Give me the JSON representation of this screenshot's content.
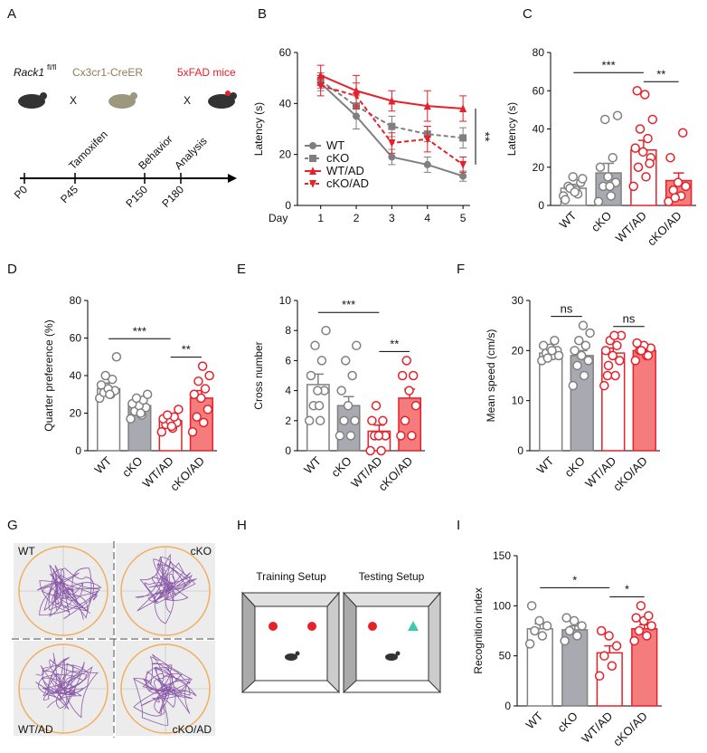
{
  "panel_a": {
    "label": "A",
    "gene": "Rack1",
    "allele": "fl/fl",
    "cre": "Cx3cr1-CreER",
    "model": "5xFAD mice",
    "crosses": [
      "X",
      "X"
    ],
    "events": [
      "Tamoxifen",
      "Behavior",
      "Analysis"
    ],
    "timepoints": [
      "P0",
      "P45",
      "P150",
      "P180"
    ]
  },
  "chart_data": [
    {
      "type": "line",
      "label": "B",
      "ylabel": "Latency (s)",
      "xlabel": "Day",
      "x": [
        1,
        2,
        3,
        4,
        5
      ],
      "xlim": [
        0.5,
        5.2
      ],
      "ylim": [
        0,
        60
      ],
      "yticks": [
        0,
        20,
        40,
        60
      ],
      "legend": "lower left",
      "significance": "**",
      "series": [
        {
          "name": "WT",
          "color": "#7f7f7f",
          "marker": "circle",
          "dashed": false,
          "values": [
            48,
            35,
            19,
            16,
            11.5
          ],
          "errors": [
            3,
            5,
            3,
            3,
            2
          ]
        },
        {
          "name": "cKO",
          "color": "#7f7f7f",
          "marker": "square",
          "dashed": true,
          "values": [
            49,
            39,
            31,
            28,
            26.5
          ],
          "errors": [
            3,
            4,
            4,
            3,
            4
          ]
        },
        {
          "name": "WT/AD",
          "color": "#e8202a",
          "marker": "triangle-up",
          "dashed": false,
          "values": [
            51,
            45,
            41,
            39,
            38
          ],
          "errors": [
            4,
            6,
            4,
            6,
            5
          ]
        },
        {
          "name": "cKO/AD",
          "color": "#e8202a",
          "marker": "triangle-down",
          "dashed": true,
          "values": [
            47,
            43,
            24.5,
            26,
            16
          ],
          "errors": [
            4,
            5,
            4,
            5,
            3
          ]
        }
      ]
    },
    {
      "type": "bar",
      "label": "C",
      "ylabel": "Latency (s)",
      "categories": [
        "WT",
        "cKO",
        "WT/AD",
        "cKO/AD"
      ],
      "values": [
        9,
        17,
        29,
        13
      ],
      "errors": [
        2,
        5,
        5,
        4
      ],
      "ylim": [
        0,
        80
      ],
      "yticks": [
        0,
        20,
        40,
        60,
        80
      ],
      "colors": [
        "#ffffff",
        "#a9a9b1",
        "#ffffff",
        "#f47c7c"
      ],
      "edge_colors": [
        "#808080",
        "#808080",
        "#e8202a",
        "#e8202a"
      ],
      "points": [
        [
          5,
          8,
          10,
          12,
          15,
          3,
          6,
          9,
          14,
          7
        ],
        [
          2,
          5,
          10,
          12,
          15,
          20,
          25,
          45,
          47,
          10
        ],
        [
          10,
          15,
          20,
          25,
          28,
          30,
          35,
          40,
          45,
          58,
          60,
          22
        ],
        [
          2,
          5,
          8,
          10,
          12,
          25,
          38,
          4
        ]
      ],
      "significance": [
        {
          "label": "***",
          "between": [
            0,
            2
          ]
        },
        {
          "label": "**",
          "between": [
            2,
            3
          ]
        }
      ]
    },
    {
      "type": "bar",
      "label": "D",
      "ylabel": "Quarter preference (%)",
      "categories": [
        "WT",
        "cKO",
        "WT/AD",
        "cKO/AD"
      ],
      "values": [
        33,
        24,
        16,
        28
      ],
      "errors": [
        3,
        2,
        2,
        4
      ],
      "ylim": [
        0,
        80
      ],
      "yticks": [
        0,
        20,
        40,
        60,
        80
      ],
      "colors": [
        "#ffffff",
        "#a9a9b1",
        "#ffffff",
        "#f47c7c"
      ],
      "edge_colors": [
        "#808080",
        "#808080",
        "#e8202a",
        "#e8202a"
      ],
      "points": [
        [
          28,
          30,
          31,
          32,
          33,
          35,
          38,
          40,
          50,
          30
        ],
        [
          17,
          19,
          21,
          23,
          24,
          25,
          27,
          28,
          30,
          20
        ],
        [
          10,
          12,
          14,
          15,
          16,
          17,
          18,
          19,
          22,
          13
        ],
        [
          10,
          15,
          18,
          22,
          28,
          30,
          33,
          37,
          40,
          45
        ]
      ],
      "significance": [
        {
          "label": "***",
          "between": [
            0,
            2
          ]
        },
        {
          "label": "**",
          "between": [
            2,
            3
          ]
        }
      ]
    },
    {
      "type": "bar",
      "label": "E",
      "ylabel": "Cross number",
      "categories": [
        "WT",
        "cKO",
        "WT/AD",
        "cKO/AD"
      ],
      "values": [
        4.4,
        3,
        1.3,
        3.5
      ],
      "errors": [
        0.7,
        0.6,
        0.4,
        0.6
      ],
      "ylim": [
        0,
        10
      ],
      "yticks": [
        0,
        2,
        4,
        6,
        8,
        10
      ],
      "colors": [
        "#ffffff",
        "#a9a9b1",
        "#ffffff",
        "#f47c7c"
      ],
      "edge_colors": [
        "#808080",
        "#808080",
        "#e8202a",
        "#e8202a"
      ],
      "points": [
        [
          2,
          2,
          3,
          4,
          4,
          5,
          6,
          7,
          8,
          3
        ],
        [
          1,
          1,
          2,
          2,
          3,
          4,
          5,
          6,
          7
        ],
        [
          0,
          0,
          1,
          1,
          1,
          2,
          2,
          3
        ],
        [
          1,
          1,
          2,
          3,
          4,
          5,
          5,
          6
        ]
      ],
      "significance": [
        {
          "label": "***",
          "between": [
            0,
            2
          ]
        },
        {
          "label": "**",
          "between": [
            2,
            3
          ]
        }
      ]
    },
    {
      "type": "bar",
      "label": "F",
      "ylabel": "Mean speed (cm/s)",
      "categories": [
        "WT",
        "cKO",
        "WT/AD",
        "cKO/AD"
      ],
      "values": [
        19.5,
        19,
        19.5,
        20
      ],
      "errors": [
        0.6,
        1,
        1,
        0.5
      ],
      "ylim": [
        0,
        30
      ],
      "yticks": [
        0,
        10,
        20,
        30
      ],
      "colors": [
        "#ffffff",
        "#a9a9b1",
        "#ffffff",
        "#f47c7c"
      ],
      "edge_colors": [
        "#808080",
        "#808080",
        "#e8202a",
        "#e8202a"
      ],
      "points": [
        [
          18,
          19,
          19.5,
          20,
          20.5,
          21,
          22,
          18.5,
          19,
          20
        ],
        [
          13,
          15,
          17,
          18,
          19,
          20,
          21,
          22,
          23.5,
          25
        ],
        [
          13,
          15,
          17,
          18,
          19,
          20,
          21,
          22,
          23,
          23,
          15
        ],
        [
          18,
          19,
          20,
          20.5,
          21,
          21.5,
          19,
          20
        ]
      ],
      "significance": [
        {
          "label": "ns",
          "between": [
            0,
            1
          ]
        },
        {
          "label": "ns",
          "between": [
            2,
            3
          ]
        }
      ]
    },
    {
      "type": "bar",
      "label": "I",
      "ylabel": "Recognition index",
      "categories": [
        "WT",
        "cKO",
        "WT/AD",
        "cKO/AD"
      ],
      "values": [
        77,
        76,
        53,
        77
      ],
      "errors": [
        5,
        4,
        7,
        4
      ],
      "ylim": [
        0,
        150
      ],
      "yticks": [
        0,
        50,
        100,
        150
      ],
      "colors": [
        "#ffffff",
        "#a9a9b1",
        "#ffffff",
        "#f47c7c"
      ],
      "edge_colors": [
        "#808080",
        "#808080",
        "#e8202a",
        "#e8202a"
      ],
      "points": [
        [
          62,
          70,
          75,
          80,
          85,
          100
        ],
        [
          65,
          70,
          75,
          80,
          85,
          88
        ],
        [
          30,
          40,
          50,
          60,
          70,
          75
        ],
        [
          65,
          70,
          75,
          80,
          85,
          88,
          90,
          100
        ]
      ],
      "significance": [
        {
          "label": "*",
          "between": [
            0,
            2
          ]
        },
        {
          "label": "*",
          "between": [
            2,
            3
          ]
        }
      ]
    }
  ],
  "panel_g": {
    "label": "G",
    "groups": [
      "WT",
      "cKO",
      "WT/AD",
      "cKO/AD"
    ]
  },
  "panel_h": {
    "label": "H",
    "setups": [
      "Training Setup",
      "Testing Setup"
    ]
  }
}
